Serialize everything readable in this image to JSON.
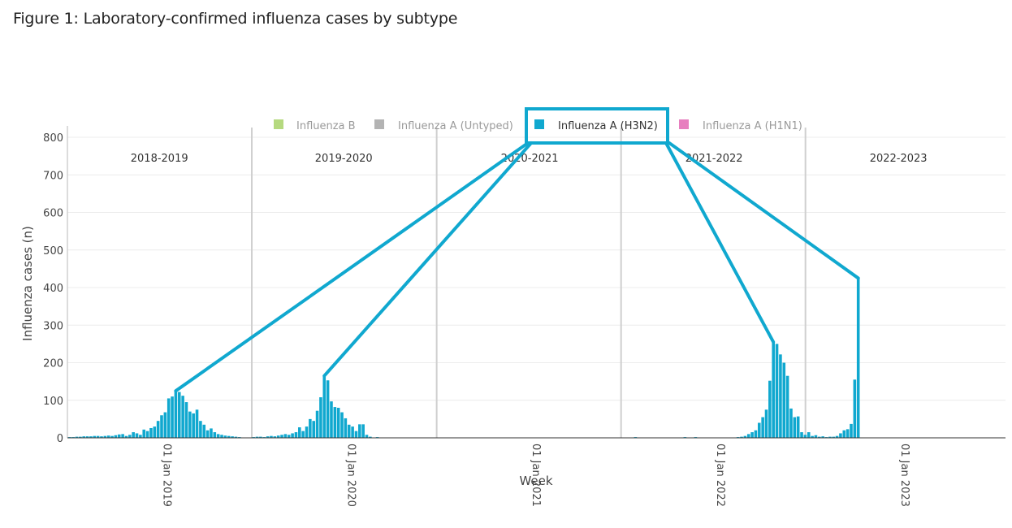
{
  "figure": {
    "title": "Figure 1: Laboratory-confirmed influenza cases by subtype"
  },
  "chart_data": {
    "type": "bar",
    "xlabel": "Week",
    "ylabel": "Influenza cases (n)",
    "ylim": [
      0,
      800
    ],
    "yticks": [
      0,
      100,
      200,
      300,
      400,
      500,
      600,
      700,
      800
    ],
    "xlim": [
      "2018-07-01",
      "2023-08-01"
    ],
    "xticks": [
      "2019-01-01",
      "2020-01-01",
      "2021-01-01",
      "2022-01-01",
      "2023-01-01"
    ],
    "xtick_labels": [
      "01 Jan 2019",
      "01 Jan 2020",
      "01 Jan 2021",
      "01 Jan 2022",
      "01 Jan 2023"
    ],
    "grid": true,
    "legend_position": "top",
    "legend": [
      {
        "name": "Influenza B",
        "color": "#b5d97f",
        "active": false
      },
      {
        "name": "Influenza A (Untyped)",
        "color": "#b3b3b3",
        "active": false
      },
      {
        "name": "Influenza A (H3N2)",
        "color": "#10a8cf",
        "active": true
      },
      {
        "name": "Influenza A (H1N1)",
        "color": "#e77fbf",
        "active": false
      }
    ],
    "season_dividers": [
      "2019-07-01",
      "2020-07-01",
      "2021-07-01",
      "2022-07-01"
    ],
    "seasons": [
      {
        "label": "2018-2019",
        "center": "2018-12-30"
      },
      {
        "label": "2019-2020",
        "center": "2019-12-30"
      },
      {
        "label": "2020-2021",
        "center": "2021-01-01"
      },
      {
        "label": "2021-2022",
        "center": "2022-01-01"
      },
      {
        "label": "2022-2023",
        "center": "2023-01-01"
      }
    ],
    "series": [
      {
        "name": "Influenza A (H3N2)",
        "color": "#10a8cf",
        "points": [
          [
            "2018-07-02",
            2
          ],
          [
            "2018-07-09",
            2
          ],
          [
            "2018-07-16",
            3
          ],
          [
            "2018-07-23",
            3
          ],
          [
            "2018-07-30",
            4
          ],
          [
            "2018-08-06",
            4
          ],
          [
            "2018-08-13",
            4
          ],
          [
            "2018-08-20",
            5
          ],
          [
            "2018-08-27",
            5
          ],
          [
            "2018-09-03",
            4
          ],
          [
            "2018-09-10",
            5
          ],
          [
            "2018-09-17",
            6
          ],
          [
            "2018-09-24",
            5
          ],
          [
            "2018-10-01",
            7
          ],
          [
            "2018-10-08",
            9
          ],
          [
            "2018-10-15",
            10
          ],
          [
            "2018-10-22",
            5
          ],
          [
            "2018-10-29",
            8
          ],
          [
            "2018-11-05",
            15
          ],
          [
            "2018-11-12",
            12
          ],
          [
            "2018-11-19",
            8
          ],
          [
            "2018-11-26",
            22
          ],
          [
            "2018-12-03",
            18
          ],
          [
            "2018-12-10",
            26
          ],
          [
            "2018-12-17",
            30
          ],
          [
            "2018-12-24",
            45
          ],
          [
            "2018-12-31",
            60
          ],
          [
            "2019-01-07",
            68
          ],
          [
            "2019-01-14",
            105
          ],
          [
            "2019-01-21",
            110
          ],
          [
            "2019-01-28",
            125
          ],
          [
            "2019-02-04",
            122
          ],
          [
            "2019-02-11",
            112
          ],
          [
            "2019-02-18",
            95
          ],
          [
            "2019-02-25",
            70
          ],
          [
            "2019-03-04",
            65
          ],
          [
            "2019-03-11",
            75
          ],
          [
            "2019-03-18",
            45
          ],
          [
            "2019-03-25",
            35
          ],
          [
            "2019-04-01",
            20
          ],
          [
            "2019-04-08",
            25
          ],
          [
            "2019-04-15",
            15
          ],
          [
            "2019-04-22",
            10
          ],
          [
            "2019-04-29",
            8
          ],
          [
            "2019-05-06",
            6
          ],
          [
            "2019-05-13",
            5
          ],
          [
            "2019-05-20",
            4
          ],
          [
            "2019-05-27",
            3
          ],
          [
            "2019-06-03",
            2
          ],
          [
            "2019-06-17",
            1
          ],
          [
            "2019-07-01",
            2
          ],
          [
            "2019-07-08",
            3
          ],
          [
            "2019-07-15",
            3
          ],
          [
            "2019-07-22",
            2
          ],
          [
            "2019-07-29",
            4
          ],
          [
            "2019-08-05",
            5
          ],
          [
            "2019-08-12",
            4
          ],
          [
            "2019-08-19",
            6
          ],
          [
            "2019-08-26",
            8
          ],
          [
            "2019-09-02",
            10
          ],
          [
            "2019-09-09",
            8
          ],
          [
            "2019-09-16",
            12
          ],
          [
            "2019-09-23",
            15
          ],
          [
            "2019-09-30",
            28
          ],
          [
            "2019-10-07",
            18
          ],
          [
            "2019-10-14",
            30
          ],
          [
            "2019-10-21",
            50
          ],
          [
            "2019-10-28",
            45
          ],
          [
            "2019-11-04",
            72
          ],
          [
            "2019-11-11",
            108
          ],
          [
            "2019-11-18",
            165
          ],
          [
            "2019-11-25",
            153
          ],
          [
            "2019-12-02",
            97
          ],
          [
            "2019-12-09",
            82
          ],
          [
            "2019-12-16",
            80
          ],
          [
            "2019-12-23",
            68
          ],
          [
            "2019-12-30",
            52
          ],
          [
            "2020-01-06",
            35
          ],
          [
            "2020-01-13",
            30
          ],
          [
            "2020-01-20",
            18
          ],
          [
            "2020-01-27",
            36
          ],
          [
            "2020-02-03",
            36
          ],
          [
            "2020-02-10",
            8
          ],
          [
            "2020-02-17",
            3
          ],
          [
            "2020-03-02",
            2
          ],
          [
            "2021-07-26",
            2
          ],
          [
            "2021-10-04",
            1
          ],
          [
            "2021-10-25",
            1
          ],
          [
            "2021-11-01",
            2
          ],
          [
            "2021-11-08",
            1
          ],
          [
            "2021-11-15",
            1
          ],
          [
            "2021-11-22",
            2
          ],
          [
            "2021-12-06",
            1
          ],
          [
            "2022-01-10",
            1
          ],
          [
            "2022-02-07",
            1
          ],
          [
            "2022-02-14",
            2
          ],
          [
            "2022-02-21",
            3
          ],
          [
            "2022-02-28",
            5
          ],
          [
            "2022-03-07",
            10
          ],
          [
            "2022-03-14",
            15
          ],
          [
            "2022-03-21",
            20
          ],
          [
            "2022-03-28",
            40
          ],
          [
            "2022-04-04",
            55
          ],
          [
            "2022-04-11",
            75
          ],
          [
            "2022-04-18",
            152
          ],
          [
            "2022-04-25",
            255
          ],
          [
            "2022-05-02",
            250
          ],
          [
            "2022-05-09",
            222
          ],
          [
            "2022-05-16",
            200
          ],
          [
            "2022-05-23",
            165
          ],
          [
            "2022-05-30",
            78
          ],
          [
            "2022-06-06",
            55
          ],
          [
            "2022-06-13",
            57
          ],
          [
            "2022-06-20",
            15
          ],
          [
            "2022-06-27",
            8
          ],
          [
            "2022-07-04",
            15
          ],
          [
            "2022-07-11",
            5
          ],
          [
            "2022-07-18",
            7
          ],
          [
            "2022-07-25",
            3
          ],
          [
            "2022-08-01",
            4
          ],
          [
            "2022-08-08",
            2
          ],
          [
            "2022-08-15",
            3
          ],
          [
            "2022-08-22",
            3
          ],
          [
            "2022-08-29",
            5
          ],
          [
            "2022-09-05",
            12
          ],
          [
            "2022-09-12",
            20
          ],
          [
            "2022-09-19",
            23
          ],
          [
            "2022-09-26",
            37
          ],
          [
            "2022-10-03",
            155
          ],
          [
            "2022-10-10",
            425
          ]
        ]
      }
    ]
  }
}
